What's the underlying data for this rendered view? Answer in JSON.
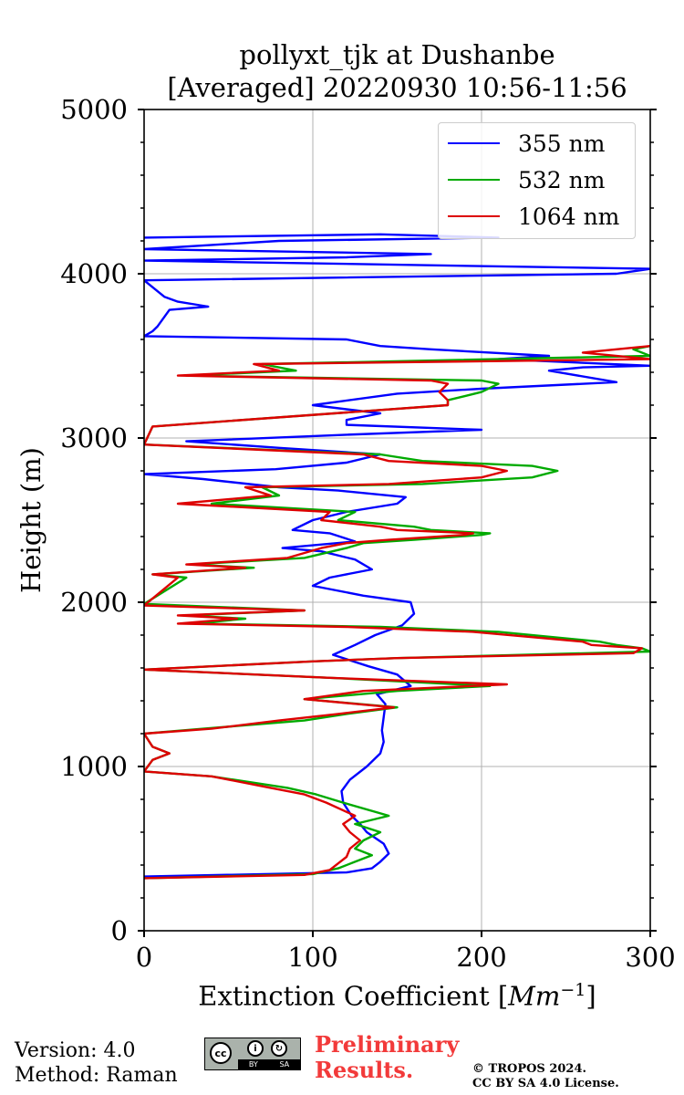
{
  "chart_data": {
    "type": "line",
    "title_line1": "pollyxt_tjk at Dushanbe",
    "title_line2": "[Averaged] 20220930 10:56-11:56",
    "xlabel_text": "Extinction Coefficient [",
    "xlabel_unit": "Mm",
    "xlabel_exp": "−1",
    "xlabel_close": "]",
    "ylabel": "Height (m)",
    "xlim": [
      0,
      300
    ],
    "ylim": [
      0,
      5000
    ],
    "xticks": [
      "0",
      "100",
      "200",
      "300"
    ],
    "yticks": [
      "0",
      "1000",
      "2000",
      "3000",
      "4000",
      "5000"
    ],
    "grid": true,
    "legend_position": "top-right",
    "series": [
      {
        "name": "355 nm",
        "color": "#0000ff",
        "points": [
          [
            0,
            330
          ],
          [
            120,
            355
          ],
          [
            135,
            380
          ],
          [
            140,
            420
          ],
          [
            145,
            470
          ],
          [
            142,
            530
          ],
          [
            132,
            600
          ],
          [
            128,
            650
          ],
          [
            123,
            700
          ],
          [
            118,
            780
          ],
          [
            117,
            850
          ],
          [
            122,
            920
          ],
          [
            132,
            1000
          ],
          [
            140,
            1080
          ],
          [
            142,
            1150
          ],
          [
            141,
            1220
          ],
          [
            142,
            1300
          ],
          [
            143,
            1380
          ],
          [
            138,
            1440
          ],
          [
            158,
            1490
          ],
          [
            150,
            1560
          ],
          [
            133,
            1610
          ],
          [
            112,
            1680
          ],
          [
            125,
            1740
          ],
          [
            137,
            1800
          ],
          [
            153,
            1860
          ],
          [
            160,
            1930
          ],
          [
            158,
            2000
          ],
          [
            130,
            2040
          ],
          [
            100,
            2100
          ],
          [
            110,
            2150
          ],
          [
            135,
            2200
          ],
          [
            125,
            2260
          ],
          [
            105,
            2310
          ],
          [
            82,
            2330
          ],
          [
            125,
            2370
          ],
          [
            110,
            2420
          ],
          [
            88,
            2440
          ],
          [
            100,
            2500
          ],
          [
            120,
            2550
          ],
          [
            150,
            2600
          ],
          [
            155,
            2640
          ],
          [
            115,
            2680
          ],
          [
            80,
            2700
          ],
          [
            35,
            2750
          ],
          [
            0,
            2780
          ],
          [
            78,
            2810
          ],
          [
            120,
            2850
          ],
          [
            140,
            2900
          ],
          [
            80,
            2940
          ],
          [
            25,
            2980
          ],
          [
            120,
            3020
          ],
          [
            200,
            3050
          ],
          [
            120,
            3080
          ],
          [
            120,
            3110
          ],
          [
            140,
            3150
          ],
          [
            100,
            3200
          ],
          [
            150,
            3270
          ],
          [
            200,
            3300
          ],
          [
            280,
            3340
          ],
          [
            240,
            3410
          ],
          [
            260,
            3430
          ],
          [
            300,
            3440
          ],
          [
            210,
            3480
          ],
          [
            240,
            3500
          ],
          [
            170,
            3540
          ],
          [
            140,
            3560
          ],
          [
            120,
            3600
          ],
          [
            0,
            3620
          ],
          [
            5,
            3650
          ],
          [
            8,
            3680
          ],
          [
            15,
            3780
          ],
          [
            38,
            3800
          ],
          [
            20,
            3830
          ],
          [
            12,
            3860
          ],
          [
            0,
            3960
          ],
          [
            280,
            4000
          ],
          [
            300,
            4030
          ],
          [
            0,
            4080
          ],
          [
            120,
            4100
          ],
          [
            170,
            4120
          ],
          [
            0,
            4150
          ],
          [
            80,
            4200
          ],
          [
            210,
            4220
          ],
          [
            140,
            4240
          ],
          [
            0,
            4220
          ]
        ]
      },
      {
        "name": "532 nm",
        "color": "#00aa00",
        "points": [
          [
            0,
            320
          ],
          [
            100,
            345
          ],
          [
            115,
            380
          ],
          [
            125,
            420
          ],
          [
            135,
            460
          ],
          [
            125,
            500
          ],
          [
            130,
            550
          ],
          [
            140,
            600
          ],
          [
            125,
            650
          ],
          [
            145,
            700
          ],
          [
            118,
            780
          ],
          [
            102,
            830
          ],
          [
            85,
            870
          ],
          [
            40,
            940
          ],
          [
            0,
            970
          ],
          [
            5,
            1040
          ],
          [
            15,
            1080
          ],
          [
            5,
            1120
          ],
          [
            0,
            1200
          ],
          [
            35,
            1230
          ],
          [
            95,
            1280
          ],
          [
            120,
            1320
          ],
          [
            150,
            1360
          ],
          [
            95,
            1410
          ],
          [
            150,
            1460
          ],
          [
            205,
            1490
          ],
          [
            110,
            1540
          ],
          [
            0,
            1590
          ],
          [
            100,
            1640
          ],
          [
            150,
            1660
          ],
          [
            300,
            1700
          ],
          [
            295,
            1720
          ],
          [
            280,
            1740
          ],
          [
            270,
            1760
          ],
          [
            210,
            1820
          ],
          [
            140,
            1850
          ],
          [
            30,
            1870
          ],
          [
            60,
            1900
          ],
          [
            25,
            1920
          ],
          [
            95,
            1950
          ],
          [
            0,
            1990
          ],
          [
            25,
            2150
          ],
          [
            5,
            2170
          ],
          [
            65,
            2210
          ],
          [
            28,
            2230
          ],
          [
            95,
            2270
          ],
          [
            120,
            2330
          ],
          [
            130,
            2360
          ],
          [
            160,
            2380
          ],
          [
            200,
            2410
          ],
          [
            205,
            2420
          ],
          [
            170,
            2440
          ],
          [
            160,
            2460
          ],
          [
            115,
            2500
          ],
          [
            125,
            2550
          ],
          [
            40,
            2600
          ],
          [
            80,
            2650
          ],
          [
            70,
            2700
          ],
          [
            165,
            2720
          ],
          [
            230,
            2760
          ],
          [
            245,
            2800
          ],
          [
            230,
            2830
          ],
          [
            165,
            2860
          ],
          [
            140,
            2900
          ],
          [
            0,
            2960
          ],
          [
            5,
            3070
          ],
          [
            180,
            3200
          ],
          [
            180,
            3230
          ],
          [
            200,
            3280
          ],
          [
            210,
            3330
          ],
          [
            200,
            3350
          ],
          [
            25,
            3380
          ],
          [
            90,
            3410
          ],
          [
            70,
            3450
          ],
          [
            300,
            3500
          ],
          [
            290,
            3540
          ],
          [
            300,
            3560
          ]
        ]
      },
      {
        "name": "1064 nm",
        "color": "#dd0000",
        "points": [
          [
            0,
            320
          ],
          [
            95,
            340
          ],
          [
            110,
            370
          ],
          [
            115,
            410
          ],
          [
            120,
            450
          ],
          [
            122,
            500
          ],
          [
            128,
            550
          ],
          [
            122,
            600
          ],
          [
            118,
            650
          ],
          [
            125,
            700
          ],
          [
            108,
            780
          ],
          [
            95,
            830
          ],
          [
            75,
            870
          ],
          [
            40,
            940
          ],
          [
            0,
            970
          ],
          [
            5,
            1040
          ],
          [
            15,
            1080
          ],
          [
            5,
            1120
          ],
          [
            0,
            1200
          ],
          [
            40,
            1230
          ],
          [
            80,
            1280
          ],
          [
            115,
            1320
          ],
          [
            148,
            1360
          ],
          [
            95,
            1410
          ],
          [
            130,
            1460
          ],
          [
            215,
            1500
          ],
          [
            110,
            1540
          ],
          [
            0,
            1590
          ],
          [
            100,
            1640
          ],
          [
            150,
            1660
          ],
          [
            290,
            1690
          ],
          [
            295,
            1720
          ],
          [
            265,
            1740
          ],
          [
            260,
            1760
          ],
          [
            195,
            1820
          ],
          [
            120,
            1850
          ],
          [
            20,
            1870
          ],
          [
            55,
            1900
          ],
          [
            20,
            1920
          ],
          [
            95,
            1950
          ],
          [
            0,
            1980
          ],
          [
            20,
            2150
          ],
          [
            5,
            2170
          ],
          [
            60,
            2210
          ],
          [
            25,
            2230
          ],
          [
            85,
            2270
          ],
          [
            105,
            2330
          ],
          [
            120,
            2360
          ],
          [
            145,
            2380
          ],
          [
            190,
            2410
          ],
          [
            195,
            2420
          ],
          [
            150,
            2440
          ],
          [
            140,
            2460
          ],
          [
            105,
            2500
          ],
          [
            110,
            2550
          ],
          [
            20,
            2600
          ],
          [
            75,
            2650
          ],
          [
            60,
            2700
          ],
          [
            145,
            2720
          ],
          [
            200,
            2760
          ],
          [
            215,
            2800
          ],
          [
            200,
            2830
          ],
          [
            145,
            2860
          ],
          [
            130,
            2900
          ],
          [
            0,
            2960
          ],
          [
            5,
            3070
          ],
          [
            180,
            3200
          ],
          [
            180,
            3230
          ],
          [
            175,
            3280
          ],
          [
            180,
            3330
          ],
          [
            170,
            3350
          ],
          [
            20,
            3380
          ],
          [
            80,
            3410
          ],
          [
            65,
            3450
          ],
          [
            300,
            3480
          ],
          [
            260,
            3520
          ],
          [
            300,
            3560
          ]
        ]
      }
    ]
  },
  "footer": {
    "version": "Version: 4.0",
    "method": "Method: Raman",
    "prelim_line1": "Preliminary",
    "prelim_line2": "Results.",
    "copyright_line1": "© TROPOS 2024.",
    "copyright_line2": "CC BY SA 4.0 License.",
    "license_badge": {
      "cc": "cc",
      "by_icon": "i",
      "sa_icon": "↻",
      "by": "BY",
      "sa": "SA"
    }
  }
}
